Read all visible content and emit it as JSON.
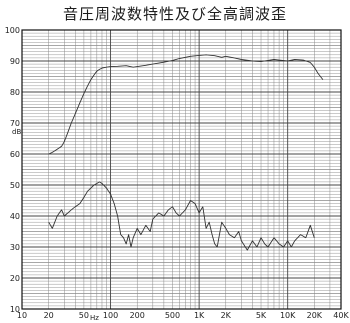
{
  "chart_data": {
    "type": "line",
    "title": "音圧周波数特性及び全高調波歪",
    "x_scale": "log",
    "xlim": [
      10,
      40000
    ],
    "ylim": [
      10,
      100
    ],
    "y_unit": "dB",
    "x_unit": "Hz",
    "grid": true,
    "x_ticks": [
      {
        "value": 10,
        "label": "10"
      },
      {
        "value": 20,
        "label": "20"
      },
      {
        "value": 50,
        "label": "50"
      },
      {
        "value": 100,
        "label": "100"
      },
      {
        "value": 200,
        "label": "200"
      },
      {
        "value": 500,
        "label": "500"
      },
      {
        "value": 1000,
        "label": "1K"
      },
      {
        "value": 2000,
        "label": "2K"
      },
      {
        "value": 5000,
        "label": "5K"
      },
      {
        "value": 10000,
        "label": "10K"
      },
      {
        "value": 20000,
        "label": "20K"
      },
      {
        "value": 40000,
        "label": "40K"
      }
    ],
    "y_ticks": [
      10,
      20,
      30,
      40,
      50,
      60,
      70,
      80,
      90,
      100
    ],
    "series": [
      {
        "name": "",
        "color": "#333333",
        "x": [
          20,
          22,
          25,
          28,
          30,
          33,
          36,
          40,
          45,
          50,
          55,
          60,
          65,
          70,
          75,
          80,
          90,
          100,
          120,
          150,
          180,
          200,
          250,
          300,
          400,
          500,
          600,
          700,
          800,
          1000,
          1200,
          1500,
          1800,
          2000,
          2500,
          3000,
          4000,
          5000,
          6000,
          7000,
          8000,
          10000,
          12000,
          15000,
          18000,
          20000,
          22000,
          25000
        ],
        "y": [
          60,
          60.5,
          61.5,
          62.5,
          64,
          67,
          70,
          73,
          76.5,
          79.5,
          82,
          84,
          85.5,
          86.7,
          87.3,
          87.7,
          88,
          88.2,
          88.3,
          88.5,
          88,
          88.2,
          88.6,
          89,
          89.6,
          90.2,
          90.8,
          91.2,
          91.5,
          91.8,
          92,
          91.7,
          91.2,
          91.5,
          91,
          90.5,
          90,
          89.8,
          90.2,
          90.5,
          90.3,
          90,
          90.5,
          90.3,
          89.5,
          88,
          86,
          84
        ]
      },
      {
        "name": "",
        "color": "#333333",
        "x": [
          20,
          22,
          25,
          28,
          30,
          33,
          36,
          40,
          45,
          50,
          55,
          60,
          65,
          70,
          75,
          80,
          90,
          100,
          110,
          120,
          130,
          140,
          150,
          160,
          170,
          180,
          200,
          220,
          250,
          280,
          300,
          350,
          400,
          450,
          500,
          550,
          600,
          700,
          800,
          900,
          1000,
          1100,
          1200,
          1300,
          1400,
          1500,
          1600,
          1800,
          2000,
          2200,
          2500,
          2800,
          3000,
          3500,
          4000,
          4500,
          5000,
          5500,
          6000,
          7000,
          8000,
          9000,
          10000,
          11000,
          12000,
          14000,
          16000,
          18000,
          20000
        ],
        "y": [
          38,
          36,
          40,
          42,
          40,
          41,
          42,
          43,
          44,
          46,
          48,
          49,
          50,
          50.5,
          51,
          50.5,
          49,
          47,
          44,
          40,
          34,
          33,
          31,
          34,
          30,
          33,
          36,
          34,
          37,
          35,
          39,
          41,
          40,
          42,
          43,
          41,
          40,
          42,
          45,
          44,
          41,
          43,
          36,
          38,
          34,
          31,
          30,
          38,
          36,
          34,
          33,
          35,
          32,
          29,
          32,
          30,
          33,
          31,
          30,
          33,
          31,
          30,
          32,
          30,
          32,
          34,
          33,
          37,
          33
        ]
      }
    ]
  }
}
